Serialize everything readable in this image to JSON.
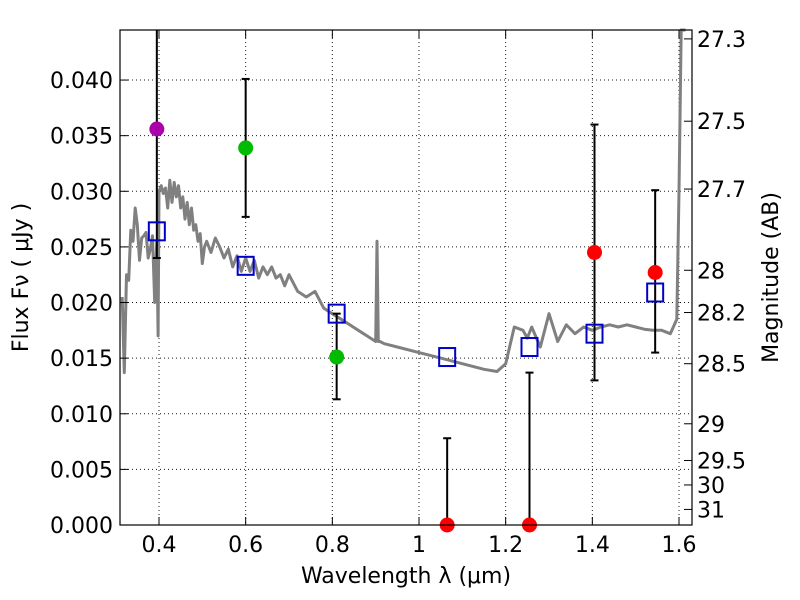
{
  "chart_data": {
    "type": "scatter",
    "title": "",
    "xlabel": "Wavelength  λ (μm)",
    "ylabel": "Flux  Fν  ( μJy )",
    "y2label": "Magnitude (AB)",
    "xlim": [
      0.31,
      1.63
    ],
    "ylim": [
      0.0,
      0.0445
    ],
    "x_ticks": [
      0.4,
      0.6,
      0.8,
      1.0,
      1.2,
      1.4,
      1.6
    ],
    "x_tick_labels": [
      "0.4",
      "0.6",
      "0.8",
      "1",
      "1.2",
      "1.4",
      "1.6"
    ],
    "y_ticks": [
      0.0,
      0.005,
      0.01,
      0.015,
      0.02,
      0.025,
      0.03,
      0.035,
      0.04
    ],
    "y_tick_labels": [
      "0.000",
      "0.005",
      "0.010",
      "0.015",
      "0.020",
      "0.025",
      "0.030",
      "0.035",
      "0.040"
    ],
    "mag_ticks": [
      {
        "label": "27.3",
        "flux": 0.0437
      },
      {
        "label": "27.5",
        "flux": 0.0363
      },
      {
        "label": "27.7",
        "flux": 0.0302
      },
      {
        "label": "28",
        "flux": 0.0229
      },
      {
        "label": "28.2",
        "flux": 0.0191
      },
      {
        "label": "28.5",
        "flux": 0.0145
      },
      {
        "label": "29",
        "flux": 0.0091
      },
      {
        "label": "29.5",
        "flux": 0.0058
      },
      {
        "label": "30",
        "flux": 0.0036
      },
      {
        "label": "31",
        "flux": 0.0014
      }
    ],
    "grid": true,
    "colors": {
      "sed": "#808080",
      "model": "#0000cc",
      "purple": "#aa00aa",
      "green": "#00bb00",
      "red": "#ff0000",
      "errorbar": "#000000"
    },
    "sed_curve": {
      "name": "SED template",
      "x": [
        0.315,
        0.32,
        0.325,
        0.33,
        0.335,
        0.34,
        0.345,
        0.35,
        0.355,
        0.36,
        0.365,
        0.37,
        0.375,
        0.38,
        0.385,
        0.39,
        0.395,
        0.398,
        0.4,
        0.405,
        0.41,
        0.415,
        0.42,
        0.425,
        0.43,
        0.435,
        0.44,
        0.445,
        0.45,
        0.455,
        0.46,
        0.465,
        0.47,
        0.475,
        0.48,
        0.485,
        0.49,
        0.495,
        0.5,
        0.505,
        0.51,
        0.52,
        0.53,
        0.54,
        0.55,
        0.56,
        0.57,
        0.58,
        0.59,
        0.6,
        0.61,
        0.62,
        0.63,
        0.64,
        0.65,
        0.66,
        0.67,
        0.68,
        0.69,
        0.7,
        0.72,
        0.74,
        0.76,
        0.78,
        0.8,
        0.82,
        0.84,
        0.86,
        0.88,
        0.9,
        0.903,
        0.906,
        0.91,
        0.92,
        0.95,
        1.0,
        1.05,
        1.1,
        1.15,
        1.18,
        1.2,
        1.22,
        1.24,
        1.25,
        1.26,
        1.28,
        1.3,
        1.32,
        1.34,
        1.36,
        1.38,
        1.4,
        1.42,
        1.44,
        1.46,
        1.48,
        1.5,
        1.52,
        1.54,
        1.56,
        1.58,
        1.595,
        1.6,
        1.605,
        1.61,
        1.615
      ],
      "values": [
        0.0205,
        0.0137,
        0.0225,
        0.022,
        0.0265,
        0.0255,
        0.0285,
        0.027,
        0.0238,
        0.0258,
        0.026,
        0.0263,
        0.024,
        0.0248,
        0.026,
        0.02,
        0.0255,
        0.017,
        0.03,
        0.0305,
        0.0298,
        0.0303,
        0.0285,
        0.031,
        0.029,
        0.0308,
        0.0295,
        0.0305,
        0.0285,
        0.0295,
        0.0275,
        0.029,
        0.027,
        0.0285,
        0.0265,
        0.027,
        0.0255,
        0.0262,
        0.0235,
        0.025,
        0.0255,
        0.0245,
        0.0258,
        0.025,
        0.024,
        0.0248,
        0.0232,
        0.0242,
        0.0228,
        0.024,
        0.0228,
        0.0238,
        0.0222,
        0.0232,
        0.0225,
        0.0232,
        0.0222,
        0.0225,
        0.0215,
        0.0225,
        0.021,
        0.0205,
        0.021,
        0.0195,
        0.019,
        0.0185,
        0.018,
        0.0175,
        0.017,
        0.0165,
        0.0255,
        0.0165,
        0.0165,
        0.0163,
        0.016,
        0.0155,
        0.015,
        0.0145,
        0.014,
        0.0138,
        0.0145,
        0.0178,
        0.0175,
        0.0168,
        0.0178,
        0.016,
        0.019,
        0.0165,
        0.018,
        0.0172,
        0.0178,
        0.0175,
        0.0178,
        0.018,
        0.0178,
        0.018,
        0.0178,
        0.0176,
        0.0175,
        0.0175,
        0.0172,
        0.0185,
        0.03,
        0.0445,
        0.0445,
        0.0445
      ]
    },
    "model_points": {
      "name": "Model photometry",
      "x": [
        0.395,
        0.6,
        0.81,
        1.065,
        1.255,
        1.405,
        1.545
      ],
      "y": [
        0.0264,
        0.0233,
        0.019,
        0.0151,
        0.016,
        0.0172,
        0.0209
      ]
    },
    "observed_points": {
      "name": "Observed photometry",
      "x": [
        0.395,
        0.6,
        0.81,
        1.065,
        1.255,
        1.405,
        1.545
      ],
      "y": [
        0.0356,
        0.0339,
        0.0151,
        0.0,
        0.0,
        0.0245,
        0.0227
      ],
      "err_low": [
        0.024,
        0.0277,
        0.0113,
        0.0,
        0.0,
        0.013,
        0.0155
      ],
      "err_high": [
        0.0445,
        0.0401,
        0.019,
        0.0078,
        0.0137,
        0.036,
        0.0301
      ],
      "colors": [
        "purple",
        "green",
        "green",
        "red",
        "red",
        "red",
        "red"
      ]
    }
  }
}
